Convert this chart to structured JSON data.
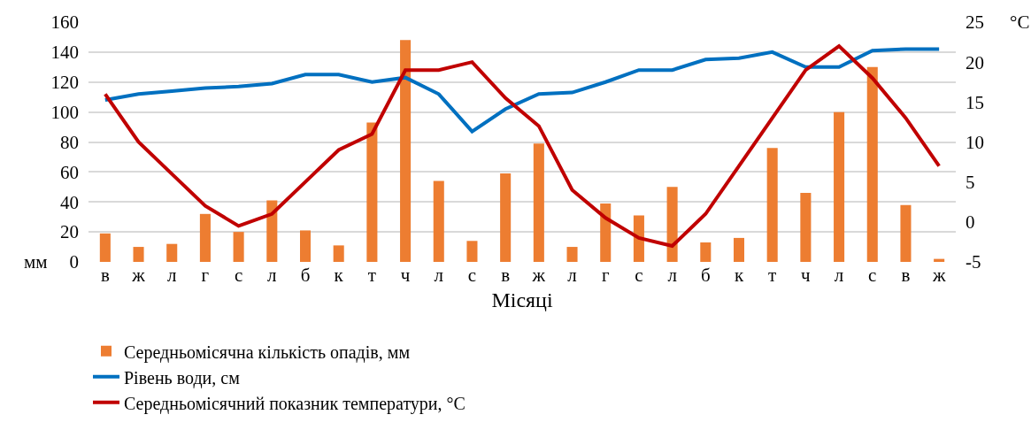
{
  "chart_data": {
    "type": "bar",
    "xlabel": "Місяці",
    "ylabel": "мм",
    "y2label": "°C",
    "categories": [
      "в",
      "ж",
      "л",
      "г",
      "с",
      "л",
      "б",
      "к",
      "т",
      "ч",
      "л",
      "с",
      "в",
      "ж",
      "л",
      "г",
      "с",
      "л",
      "б",
      "к",
      "т",
      "ч",
      "л",
      "с",
      "в",
      "ж"
    ],
    "series": [
      {
        "name": "Середньомісячна кількість опадів, мм",
        "color": "#ed7d31",
        "values": [
          19,
          10,
          12,
          32,
          20,
          41,
          21,
          11,
          93,
          148,
          54,
          14,
          59,
          79,
          10,
          39,
          31,
          50,
          13,
          16,
          76,
          46,
          100,
          130,
          38,
          2
        ]
      },
      {
        "name": "Рівень води, см",
        "type": "line",
        "color": "#0070c0",
        "values": [
          108,
          112,
          114,
          116,
          117,
          119,
          125,
          125,
          120,
          123,
          112,
          87,
          102,
          112,
          113,
          120,
          128,
          128,
          135,
          136,
          140,
          130,
          130,
          141,
          142,
          142
        ]
      },
      {
        "name": "Середньомісячний показник температури, °C",
        "type": "line",
        "axis": "y2",
        "color": "#c00000",
        "values": [
          16,
          10,
          6,
          2,
          -0.5,
          1,
          5,
          9,
          11,
          19,
          19,
          20,
          15.5,
          12,
          4,
          0.5,
          -2,
          -3,
          1,
          7,
          13,
          19,
          22,
          18,
          13,
          7
        ]
      }
    ],
    "ylim": [
      0,
      160
    ],
    "yticks": [
      0,
      20,
      40,
      60,
      80,
      100,
      120,
      140,
      160
    ],
    "y2lim": [
      -5,
      25
    ],
    "y2ticks": [
      -5,
      0,
      5,
      10,
      15,
      20,
      25
    ],
    "grid": "y",
    "legend": "bottom",
    "marker": "none",
    "line_style": "solid"
  }
}
